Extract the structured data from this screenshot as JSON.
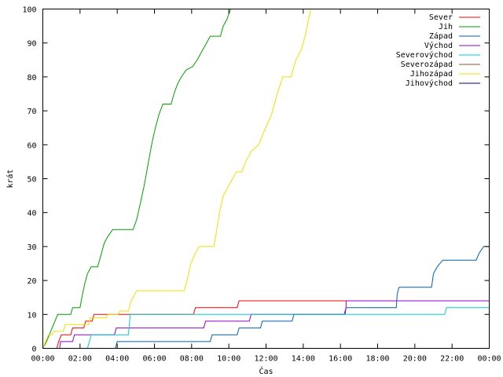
{
  "chart_data": {
    "type": "line",
    "ylabel": "krát",
    "xlabel": "Čas",
    "xlim": [
      0,
      24
    ],
    "ylim": [
      0,
      100
    ],
    "x_ticks": [
      0,
      2,
      4,
      6,
      8,
      10,
      12,
      14,
      16,
      18,
      20,
      22,
      24
    ],
    "x_tick_labels": [
      "00:00",
      "02:00",
      "04:00",
      "06:00",
      "08:00",
      "10:00",
      "12:00",
      "14:00",
      "16:00",
      "18:00",
      "20:00",
      "22:00",
      "00:00"
    ],
    "y_ticks": [
      0,
      10,
      20,
      30,
      40,
      50,
      60,
      70,
      80,
      90,
      100
    ],
    "y_tick_labels": [
      "0",
      "10",
      "20",
      "30",
      "40",
      "50",
      "60",
      "70",
      "80",
      "90",
      "100"
    ],
    "grid": false,
    "legend_position": "top-right",
    "series": [
      {
        "name": "Sever",
        "color": "#ff0000",
        "points": [
          [
            0,
            0
          ],
          [
            0.75,
            0
          ],
          [
            0.85,
            2
          ],
          [
            1.0,
            4
          ],
          [
            1.5,
            4
          ],
          [
            1.6,
            6
          ],
          [
            2.2,
            6
          ],
          [
            2.3,
            8
          ],
          [
            2.65,
            8
          ],
          [
            2.75,
            10
          ],
          [
            8.1,
            10
          ],
          [
            8.2,
            12
          ],
          [
            10.45,
            12
          ],
          [
            10.55,
            14
          ],
          [
            24,
            14
          ],
          [
            24,
            16
          ]
        ]
      },
      {
        "name": "Jih",
        "color": "#00a000",
        "points": [
          [
            0,
            0
          ],
          [
            0.1,
            1
          ],
          [
            0.2,
            2
          ],
          [
            0.35,
            4
          ],
          [
            0.5,
            6
          ],
          [
            0.65,
            8
          ],
          [
            0.8,
            10
          ],
          [
            1.5,
            10
          ],
          [
            1.6,
            12
          ],
          [
            2.0,
            12
          ],
          [
            2.1,
            15
          ],
          [
            2.25,
            19
          ],
          [
            2.4,
            22
          ],
          [
            2.6,
            24
          ],
          [
            2.95,
            24
          ],
          [
            3.1,
            27
          ],
          [
            3.3,
            31
          ],
          [
            3.5,
            33
          ],
          [
            3.75,
            35
          ],
          [
            4.85,
            35
          ],
          [
            5.05,
            38
          ],
          [
            5.25,
            43
          ],
          [
            5.45,
            48
          ],
          [
            5.65,
            54
          ],
          [
            5.85,
            60
          ],
          [
            6.05,
            65
          ],
          [
            6.25,
            69
          ],
          [
            6.45,
            72
          ],
          [
            6.9,
            72
          ],
          [
            7.05,
            75
          ],
          [
            7.25,
            78
          ],
          [
            7.45,
            80
          ],
          [
            7.7,
            82
          ],
          [
            8.05,
            83
          ],
          [
            8.3,
            85
          ],
          [
            8.6,
            88
          ],
          [
            8.8,
            90
          ],
          [
            9.0,
            92
          ],
          [
            9.55,
            92
          ],
          [
            9.7,
            95
          ],
          [
            9.9,
            97
          ],
          [
            10.1,
            100
          ]
        ]
      },
      {
        "name": "Západ",
        "color": "#0060ad",
        "points": [
          [
            0,
            0
          ],
          [
            3.9,
            0
          ],
          [
            4.0,
            2
          ],
          [
            9.0,
            2
          ],
          [
            9.1,
            4
          ],
          [
            10.45,
            4
          ],
          [
            10.55,
            6
          ],
          [
            11.7,
            6
          ],
          [
            11.8,
            8
          ],
          [
            13.4,
            8
          ],
          [
            13.5,
            10
          ],
          [
            16.25,
            10
          ],
          [
            16.3,
            12
          ],
          [
            19.0,
            12
          ],
          [
            19.05,
            16
          ],
          [
            19.15,
            18
          ],
          [
            20.9,
            18
          ],
          [
            21.0,
            22
          ],
          [
            21.2,
            24
          ],
          [
            21.5,
            26
          ],
          [
            23.3,
            26
          ],
          [
            23.45,
            28
          ],
          [
            23.7,
            30
          ],
          [
            24,
            30
          ]
        ]
      },
      {
        "name": "Východ",
        "color": "#9400d3",
        "points": [
          [
            0,
            0
          ],
          [
            0.9,
            0
          ],
          [
            0.95,
            2
          ],
          [
            1.6,
            2
          ],
          [
            1.7,
            4
          ],
          [
            3.85,
            4
          ],
          [
            3.95,
            6
          ],
          [
            8.65,
            6
          ],
          [
            8.75,
            8
          ],
          [
            11.1,
            8
          ],
          [
            11.2,
            10
          ],
          [
            16.2,
            10
          ],
          [
            16.3,
            12
          ],
          [
            16.3,
            14
          ],
          [
            24,
            14
          ]
        ]
      },
      {
        "name": "Severovýchod",
        "color": "#00ced1",
        "points": [
          [
            0,
            0
          ],
          [
            2.4,
            0
          ],
          [
            2.5,
            2
          ],
          [
            2.6,
            4
          ],
          [
            4.6,
            4
          ],
          [
            4.7,
            10
          ],
          [
            21.6,
            10
          ],
          [
            21.7,
            12
          ],
          [
            24,
            12
          ]
        ]
      },
      {
        "name": "Severozápad",
        "color": "#a0522d",
        "points": [
          [
            0,
            0
          ],
          [
            24,
            0
          ]
        ]
      },
      {
        "name": "Jihozápad",
        "color": "#f0e000",
        "points": [
          [
            0,
            0
          ],
          [
            0.15,
            2
          ],
          [
            0.3,
            4
          ],
          [
            0.5,
            4
          ],
          [
            0.6,
            5
          ],
          [
            1.1,
            5
          ],
          [
            1.2,
            7
          ],
          [
            2.45,
            7
          ],
          [
            2.55,
            9
          ],
          [
            3.4,
            9
          ],
          [
            3.5,
            10
          ],
          [
            4.05,
            10
          ],
          [
            4.15,
            11
          ],
          [
            4.6,
            11
          ],
          [
            4.75,
            14
          ],
          [
            5.05,
            17
          ],
          [
            7.6,
            17
          ],
          [
            7.8,
            21
          ],
          [
            7.95,
            25
          ],
          [
            8.2,
            28
          ],
          [
            8.4,
            30
          ],
          [
            9.2,
            30
          ],
          [
            9.35,
            35
          ],
          [
            9.5,
            40
          ],
          [
            9.7,
            45
          ],
          [
            10.0,
            48
          ],
          [
            10.4,
            52
          ],
          [
            10.7,
            52
          ],
          [
            10.9,
            55
          ],
          [
            11.2,
            58
          ],
          [
            11.6,
            60
          ],
          [
            11.9,
            64
          ],
          [
            12.3,
            69
          ],
          [
            12.6,
            75
          ],
          [
            12.9,
            80
          ],
          [
            13.35,
            80
          ],
          [
            13.6,
            85
          ],
          [
            13.9,
            88
          ],
          [
            14.1,
            92
          ],
          [
            14.25,
            96
          ],
          [
            14.4,
            100
          ]
        ]
      },
      {
        "name": "Jihovýchod",
        "color": "#000080",
        "points": [
          [
            0,
            0
          ],
          [
            24,
            0
          ]
        ]
      }
    ]
  }
}
